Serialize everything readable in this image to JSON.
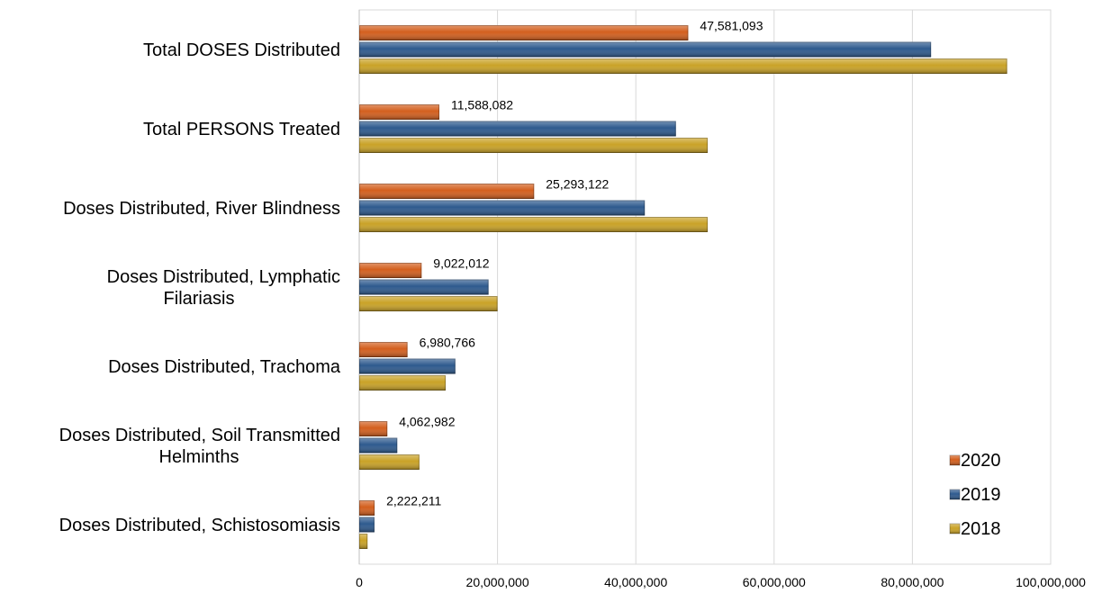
{
  "chart_data": {
    "type": "bar",
    "orientation": "horizontal",
    "categories": [
      [
        "Total DOSES Distributed"
      ],
      [
        "Total PERSONS Treated"
      ],
      [
        "Doses Distributed, River Blindness"
      ],
      [
        "Doses Distributed, Lymphatic",
        "Filariasis"
      ],
      [
        "Doses Distributed, Trachoma"
      ],
      [
        "Doses Distributed, Soil Transmitted",
        "Helminths"
      ],
      [
        "Doses Distributed, Schistosomiasis"
      ]
    ],
    "series": [
      {
        "name": "2020",
        "color": "#D35F1E",
        "values": [
          47581093,
          11588082,
          25293122,
          9022012,
          6980766,
          4062982,
          2222211
        ],
        "data_labels": [
          "47,581,093",
          "11,588,082",
          "25,293,122",
          "9,022,012",
          "6,980,766",
          "4,062,982",
          "2,222,211"
        ]
      },
      {
        "name": "2019",
        "color": "#2E5A8E",
        "values": [
          82700000,
          45800000,
          41300000,
          18700000,
          13900000,
          5500000,
          2200000
        ]
      },
      {
        "name": "2018",
        "color": "#C9A227",
        "values": [
          93700000,
          50400000,
          50400000,
          20000000,
          12500000,
          8700000,
          1200000
        ]
      }
    ],
    "xlim": [
      0,
      100000000
    ],
    "x_ticks": [
      0,
      20000000,
      40000000,
      60000000,
      80000000,
      100000000
    ],
    "x_tick_labels": [
      "0",
      "20,000,000",
      "40,000,000",
      "60,000,000",
      "80,000,000",
      "100,000,000"
    ],
    "grid": "vertical",
    "legend_position": "bottom-right",
    "legend_order": [
      "2020",
      "2019",
      "2018"
    ]
  }
}
